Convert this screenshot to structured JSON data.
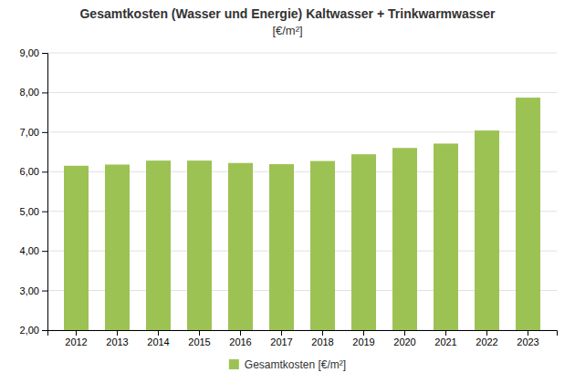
{
  "chart_data": {
    "type": "bar",
    "title": "Gesamtkosten (Wasser und Energie) Kaltwasser + Trinkwarmwasser",
    "subtitle": "[€/m²]",
    "categories": [
      "2012",
      "2013",
      "2014",
      "2015",
      "2016",
      "2017",
      "2018",
      "2019",
      "2020",
      "2021",
      "2022",
      "2023"
    ],
    "series": [
      {
        "name": "Gesamtkosten [€/m²]",
        "color": "#9dc254",
        "values": [
          6.15,
          6.18,
          6.28,
          6.28,
          6.22,
          6.19,
          6.27,
          6.44,
          6.6,
          6.71,
          7.04,
          7.87
        ]
      }
    ],
    "ylim": [
      2.0,
      9.0
    ],
    "yticks": [
      {
        "value": 2.0,
        "label": "2,00"
      },
      {
        "value": 3.0,
        "label": "3,00"
      },
      {
        "value": 4.0,
        "label": "4,00"
      },
      {
        "value": 5.0,
        "label": "5,00"
      },
      {
        "value": 6.0,
        "label": "6,00"
      },
      {
        "value": 7.0,
        "label": "7,00"
      },
      {
        "value": 8.0,
        "label": "8,00"
      },
      {
        "value": 9.0,
        "label": "9,00"
      }
    ],
    "grid": true,
    "legend": "bottom"
  }
}
